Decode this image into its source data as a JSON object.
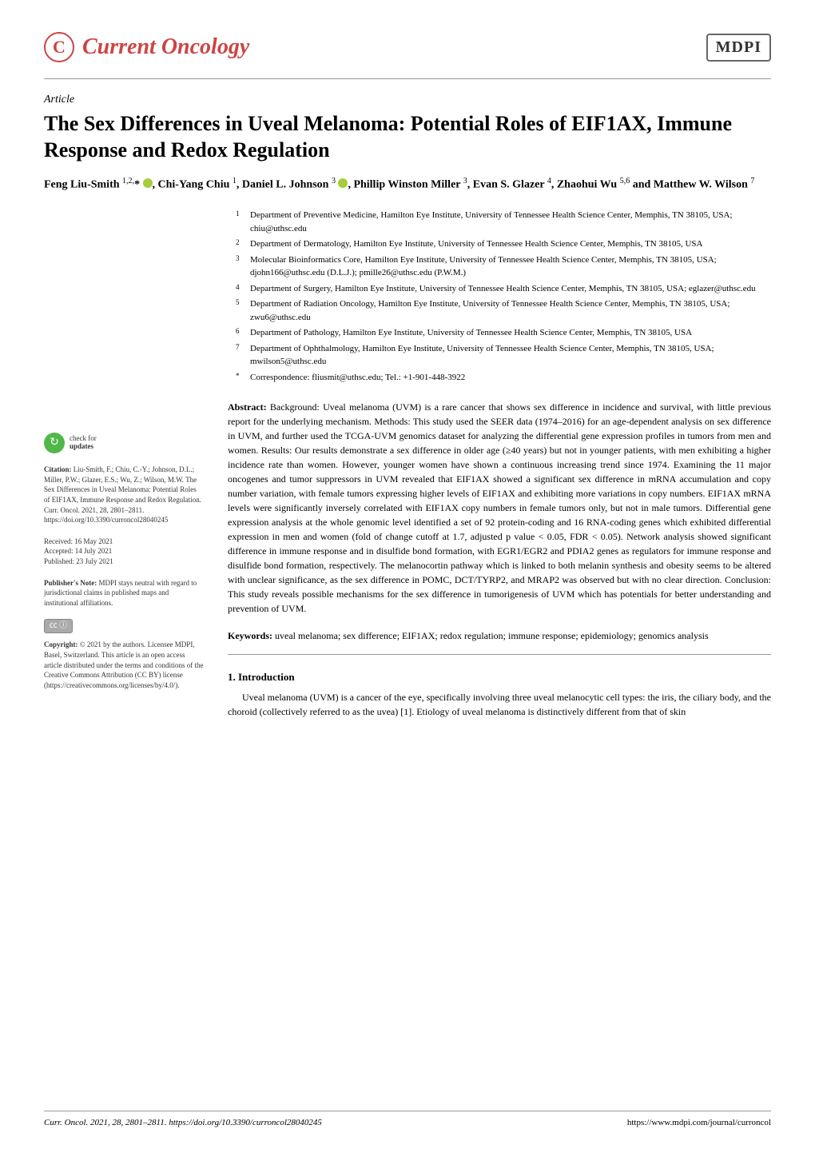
{
  "header": {
    "journal_name": "Current Oncology",
    "publisher_logo": "MDPI"
  },
  "article": {
    "type": "Article",
    "title": "The Sex Differences in Uveal Melanoma: Potential Roles of EIF1AX, Immune Response and Redox Regulation",
    "authors_html": "Feng Liu-Smith <sup>1,2,</sup>* ⬤, Chi-Yang Chiu <sup>1</sup>, Daniel L. Johnson <sup>3</sup> ⬤, Phillip Winston Miller <sup>3</sup>, Evan S. Glazer <sup>4</sup>, Zhaohui Wu <sup>5,6</sup> and Matthew W. Wilson <sup>7</sup>"
  },
  "affiliations": [
    {
      "num": "1",
      "text": "Department of Preventive Medicine, Hamilton Eye Institute, University of Tennessee Health Science Center, Memphis, TN 38105, USA; chiu@uthsc.edu"
    },
    {
      "num": "2",
      "text": "Department of Dermatology, Hamilton Eye Institute, University of Tennessee Health Science Center, Memphis, TN 38105, USA"
    },
    {
      "num": "3",
      "text": "Molecular Bioinformatics Core, Hamilton Eye Institute, University of Tennessee Health Science Center, Memphis, TN 38105, USA; djohn166@uthsc.edu (D.L.J.); pmille26@uthsc.edu (P.W.M.)"
    },
    {
      "num": "4",
      "text": "Department of Surgery, Hamilton Eye Institute, University of Tennessee Health Science Center, Memphis, TN 38105, USA; eglazer@uthsc.edu"
    },
    {
      "num": "5",
      "text": "Department of Radiation Oncology, Hamilton Eye Institute, University of Tennessee Health Science Center, Memphis, TN 38105, USA; zwu6@uthsc.edu"
    },
    {
      "num": "6",
      "text": "Department of Pathology, Hamilton Eye Institute, University of Tennessee Health Science Center, Memphis, TN 38105, USA"
    },
    {
      "num": "7",
      "text": "Department of Ophthalmology, Hamilton Eye Institute, University of Tennessee Health Science Center, Memphis, TN 38105, USA; mwilson5@uthsc.edu"
    },
    {
      "num": "*",
      "text": "Correspondence: fliusmit@uthsc.edu; Tel.: +1-901-448-3922"
    }
  ],
  "abstract": {
    "label": "Abstract:",
    "text": "Background: Uveal melanoma (UVM) is a rare cancer that shows sex difference in incidence and survival, with little previous report for the underlying mechanism. Methods: This study used the SEER data (1974–2016) for an age-dependent analysis on sex difference in UVM, and further used the TCGA-UVM genomics dataset for analyzing the differential gene expression profiles in tumors from men and women. Results: Our results demonstrate a sex difference in older age (≥40 years) but not in younger patients, with men exhibiting a higher incidence rate than women. However, younger women have shown a continuous increasing trend since 1974. Examining the 11 major oncogenes and tumor suppressors in UVM revealed that EIF1AX showed a significant sex difference in mRNA accumulation and copy number variation, with female tumors expressing higher levels of EIF1AX and exhibiting more variations in copy numbers. EIF1AX mRNA levels were significantly inversely correlated with EIF1AX copy numbers in female tumors only, but not in male tumors. Differential gene expression analysis at the whole genomic level identified a set of 92 protein-coding and 16 RNA-coding genes which exhibited differential expression in men and women (fold of change cutoff at 1.7, adjusted p value < 0.05, FDR < 0.05). Network analysis showed significant difference in immune response and in disulfide bond formation, with EGR1/EGR2 and PDIA2 genes as regulators for immune response and disulfide bond formation, respectively. The melanocortin pathway which is linked to both melanin synthesis and obesity seems to be altered with unclear significance, as the sex difference in POMC, DCT/TYRP2, and MRAP2 was observed but with no clear direction. Conclusion: This study reveals possible mechanisms for the sex difference in tumorigenesis of UVM which has potentials for better understanding and prevention of UVM."
  },
  "keywords": {
    "label": "Keywords:",
    "text": "uveal melanoma; sex difference; EIF1AX; redox regulation; immune response; epidemiology; genomics analysis"
  },
  "introduction": {
    "heading": "1. Introduction",
    "text": "Uveal melanoma (UVM) is a cancer of the eye, specifically involving three uveal melanocytic cell types: the iris, the ciliary body, and the choroid (collectively referred to as the uvea) [1]. Etiology of uveal melanoma is distinctively different from that of skin"
  },
  "sidebar": {
    "check_updates": {
      "line1": "check for",
      "line2": "updates"
    },
    "citation": "Citation: Liu-Smith, F.; Chiu, C.-Y.; Johnson, D.L.; Miller, P.W.; Glazer, E.S.; Wu, Z.; Wilson, M.W. The Sex Differences in Uveal Melanoma: Potential Roles of EIF1AX, Immune Response and Redox Regulation. Curr. Oncol. 2021, 28, 2801–2811. https://doi.org/10.3390/curroncol28040245",
    "received": "Received: 16 May 2021",
    "accepted": "Accepted: 14 July 2021",
    "published": "Published: 23 July 2021",
    "publishers_note": "Publisher's Note: MDPI stays neutral with regard to jurisdictional claims in published maps and institutional affiliations.",
    "cc_label": "CC BY",
    "copyright": "Copyright: © 2021 by the authors. Licensee MDPI, Basel, Switzerland. This article is an open access article distributed under the terms and conditions of the Creative Commons Attribution (CC BY) license (https://creativecommons.org/licenses/by/4.0/)."
  },
  "footer": {
    "left": "Curr. Oncol. 2021, 28, 2801–2811. https://doi.org/10.3390/curroncol28040245",
    "right": "https://www.mdpi.com/journal/curroncol"
  },
  "colors": {
    "journal_accent": "#cc4444",
    "divider": "#999999",
    "orcid_green": "#a6ce39",
    "check_green": "#50b848"
  }
}
